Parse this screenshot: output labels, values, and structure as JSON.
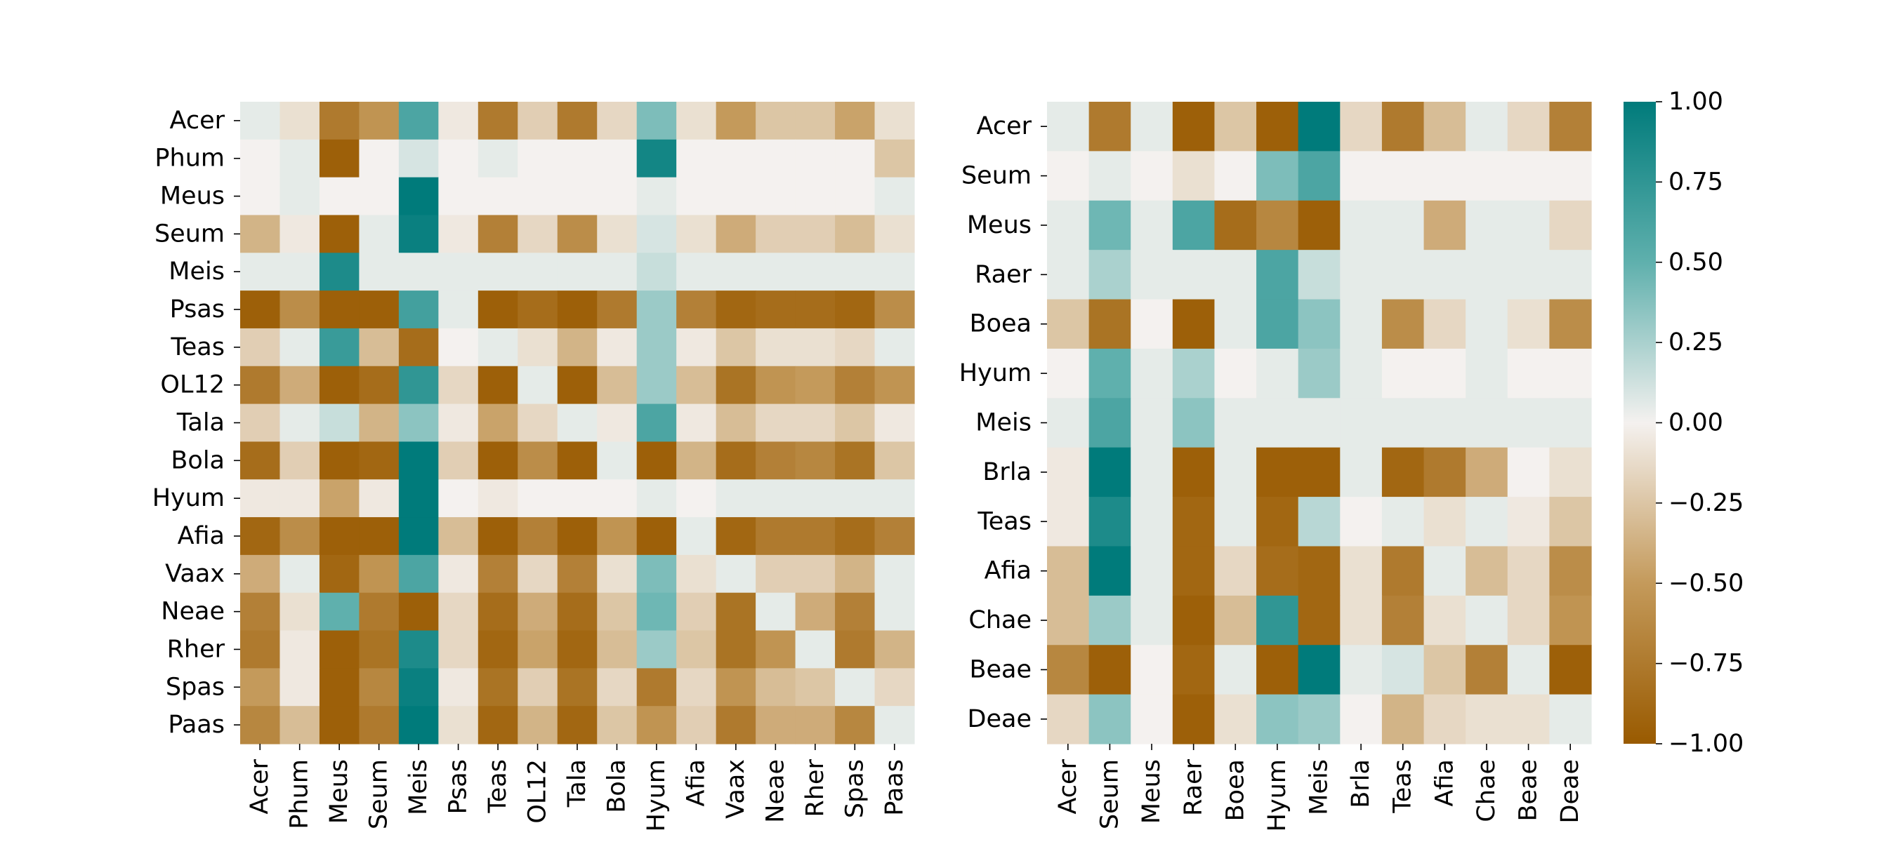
{
  "chart_data": [
    {
      "type": "heatmap",
      "title": "",
      "xlabel": "",
      "ylabel": "",
      "rows": [
        "Acer",
        "Phum",
        "Meus",
        "Seum",
        "Meis",
        "Psas",
        "Teas",
        "OL12",
        "Tala",
        "Bola",
        "Hyum",
        "Afia",
        "Vaax",
        "Neae",
        "Rher",
        "Spas",
        "Paas"
      ],
      "columns": [
        "Acer",
        "Phum",
        "Meus",
        "Seum",
        "Meis",
        "Psas",
        "Teas",
        "OL12",
        "Tala",
        "Bola",
        "Hyum",
        "Afia",
        "Vaax",
        "Neae",
        "Rher",
        "Spas",
        "Paas"
      ],
      "values": [
        [
          0.05,
          -0.1,
          -0.75,
          -0.55,
          0.6,
          -0.05,
          -0.75,
          -0.2,
          -0.75,
          -0.15,
          0.4,
          -0.1,
          -0.5,
          -0.25,
          -0.25,
          -0.45,
          -0.1
        ],
        [
          0,
          0.05,
          -0.95,
          0,
          0.1,
          0,
          0.05,
          0,
          0,
          0,
          0.9,
          0,
          0,
          0,
          0,
          0,
          -0.25
        ],
        [
          0,
          0.05,
          0,
          0,
          1,
          0,
          0,
          0,
          0,
          0,
          0.05,
          0,
          0,
          0,
          0,
          0,
          0.05
        ],
        [
          -0.35,
          -0.05,
          -0.95,
          0.05,
          0.95,
          -0.05,
          -0.7,
          -0.15,
          -0.6,
          -0.1,
          0.1,
          -0.1,
          -0.4,
          -0.2,
          -0.2,
          -0.3,
          -0.1
        ],
        [
          0.05,
          0.05,
          0.85,
          0.05,
          0.05,
          0.05,
          0.05,
          0.05,
          0.05,
          0.05,
          0.15,
          0.05,
          0.05,
          0.05,
          0.05,
          0.05,
          0.05
        ],
        [
          -0.95,
          -0.6,
          -0.95,
          -0.95,
          0.65,
          0.05,
          -0.95,
          -0.85,
          -0.95,
          -0.75,
          0.3,
          -0.7,
          -0.9,
          -0.85,
          -0.85,
          -0.9,
          -0.6
        ],
        [
          -0.2,
          0.05,
          0.7,
          -0.3,
          -0.85,
          0,
          0.05,
          -0.1,
          -0.35,
          -0.05,
          0.3,
          -0.05,
          -0.25,
          -0.1,
          -0.1,
          -0.15,
          0.05
        ],
        [
          -0.75,
          -0.4,
          -0.95,
          -0.85,
          0.75,
          -0.15,
          -0.95,
          0.05,
          -0.95,
          -0.3,
          0.3,
          -0.3,
          -0.8,
          -0.55,
          -0.5,
          -0.7,
          -0.55
        ],
        [
          -0.2,
          0.05,
          0.15,
          -0.35,
          0.35,
          -0.05,
          -0.45,
          -0.15,
          0.05,
          -0.05,
          0.6,
          -0.05,
          -0.3,
          -0.15,
          -0.15,
          -0.25,
          -0.05
        ],
        [
          -0.85,
          -0.2,
          -0.95,
          -0.9,
          1,
          -0.2,
          -0.95,
          -0.6,
          -0.95,
          0.05,
          -0.95,
          -0.35,
          -0.85,
          -0.7,
          -0.65,
          -0.8,
          -0.25
        ],
        [
          -0.05,
          -0.05,
          -0.45,
          -0.05,
          1,
          0,
          -0.05,
          0,
          0,
          0,
          0.05,
          0,
          0.05,
          0.05,
          0.05,
          0.05,
          0.05
        ],
        [
          -0.9,
          -0.6,
          -0.95,
          -0.95,
          1,
          -0.3,
          -0.95,
          -0.7,
          -0.95,
          -0.55,
          -0.95,
          0.05,
          -0.9,
          -0.75,
          -0.75,
          -0.85,
          -0.7
        ],
        [
          -0.4,
          0.05,
          -0.9,
          -0.55,
          0.6,
          -0.05,
          -0.7,
          -0.15,
          -0.7,
          -0.1,
          0.4,
          -0.1,
          0.05,
          -0.2,
          -0.2,
          -0.35,
          0.05
        ],
        [
          -0.7,
          -0.1,
          0.5,
          -0.75,
          -0.95,
          -0.15,
          -0.85,
          -0.4,
          -0.85,
          -0.25,
          0.45,
          -0.2,
          -0.8,
          0.05,
          -0.4,
          -0.7,
          0.05
        ],
        [
          -0.75,
          -0.05,
          -0.95,
          -0.8,
          0.85,
          -0.15,
          -0.9,
          -0.45,
          -0.9,
          -0.3,
          0.3,
          -0.25,
          -0.8,
          -0.55,
          0.05,
          -0.75,
          -0.35
        ],
        [
          -0.5,
          -0.05,
          -0.95,
          -0.65,
          0.95,
          -0.05,
          -0.8,
          -0.2,
          -0.8,
          -0.15,
          -0.75,
          -0.15,
          -0.55,
          -0.3,
          -0.25,
          0.05,
          -0.15
        ],
        [
          -0.65,
          -0.3,
          -0.95,
          -0.75,
          1,
          -0.1,
          -0.9,
          -0.35,
          -0.9,
          -0.25,
          -0.55,
          -0.2,
          -0.75,
          -0.4,
          -0.4,
          -0.65,
          0.05
        ]
      ]
    },
    {
      "type": "heatmap",
      "title": "",
      "xlabel": "",
      "ylabel": "",
      "rows": [
        "Acer",
        "Seum",
        "Meus",
        "Raer",
        "Boea",
        "Hyum",
        "Meis",
        "Brla",
        "Teas",
        "Afia",
        "Chae",
        "Beae",
        "Deae"
      ],
      "columns": [
        "Acer",
        "Seum",
        "Meus",
        "Raer",
        "Boea",
        "Hyum",
        "Meis",
        "Brla",
        "Teas",
        "Afia",
        "Chae",
        "Beae",
        "Deae"
      ],
      "values": [
        [
          0.05,
          -0.75,
          0.05,
          -0.95,
          -0.25,
          -0.95,
          1,
          -0.15,
          -0.75,
          -0.3,
          0.05,
          -0.15,
          -0.7
        ],
        [
          0,
          0.05,
          0,
          -0.1,
          0,
          0.4,
          0.6,
          0,
          0,
          0,
          0,
          0,
          0
        ],
        [
          0.05,
          0.45,
          0.05,
          0.6,
          -0.85,
          -0.65,
          -0.95,
          0.05,
          0.05,
          -0.4,
          0.05,
          0.05,
          -0.15
        ],
        [
          0.05,
          0.25,
          0.05,
          0.05,
          0.05,
          0.6,
          0.15,
          0.05,
          0.05,
          0.05,
          0.05,
          0.05,
          0.05
        ],
        [
          -0.25,
          -0.8,
          0,
          -0.95,
          0.05,
          0.6,
          0.35,
          0.05,
          -0.6,
          -0.15,
          0.05,
          -0.1,
          -0.6
        ],
        [
          0,
          0.5,
          0.05,
          0.25,
          0,
          0.05,
          0.3,
          0.05,
          0,
          0,
          0.05,
          0,
          0
        ],
        [
          0.05,
          0.6,
          0.05,
          0.35,
          0.05,
          0.05,
          0.05,
          0.05,
          0.05,
          0.05,
          0.05,
          0.05,
          0.05
        ],
        [
          -0.05,
          1,
          0.05,
          -0.95,
          0.05,
          -0.95,
          -0.95,
          0.05,
          -0.9,
          -0.75,
          -0.4,
          0,
          -0.1
        ],
        [
          -0.05,
          0.85,
          0.05,
          -0.9,
          0.05,
          -0.9,
          0.2,
          0,
          0.05,
          -0.1,
          0.05,
          -0.05,
          -0.25
        ],
        [
          -0.3,
          1,
          0.05,
          -0.9,
          -0.15,
          -0.85,
          -0.9,
          -0.1,
          -0.75,
          0.05,
          -0.3,
          -0.15,
          -0.6
        ],
        [
          -0.3,
          0.3,
          0.05,
          -0.95,
          -0.3,
          0.75,
          -0.9,
          -0.1,
          -0.7,
          -0.1,
          0.05,
          -0.15,
          -0.55
        ],
        [
          -0.65,
          -0.95,
          0,
          -0.9,
          0.05,
          -0.95,
          1,
          0.05,
          0.1,
          -0.25,
          -0.7,
          0.05,
          -0.95
        ],
        [
          -0.15,
          0.35,
          0,
          -0.95,
          -0.1,
          0.35,
          0.3,
          0,
          -0.35,
          -0.15,
          -0.1,
          -0.1,
          0.05
        ]
      ]
    }
  ],
  "colorbar": {
    "vmin": -1,
    "vmax": 1,
    "tick_values": [
      1,
      0.75,
      0.5,
      0.25,
      0,
      -0.25,
      -0.5,
      -0.75,
      -1
    ],
    "tick_labels": [
      "1.00",
      "0.75",
      "0.50",
      "0.25",
      "0.00",
      "−0.25",
      "−0.50",
      "−0.75",
      "−1.00"
    ]
  },
  "colors": {
    "negative_end": "#995a00",
    "negative_mid": "#c49a5b",
    "neutral": "#f4f1ef",
    "positive_mid": "#5fb0ad",
    "positive_end": "#007b7b"
  }
}
